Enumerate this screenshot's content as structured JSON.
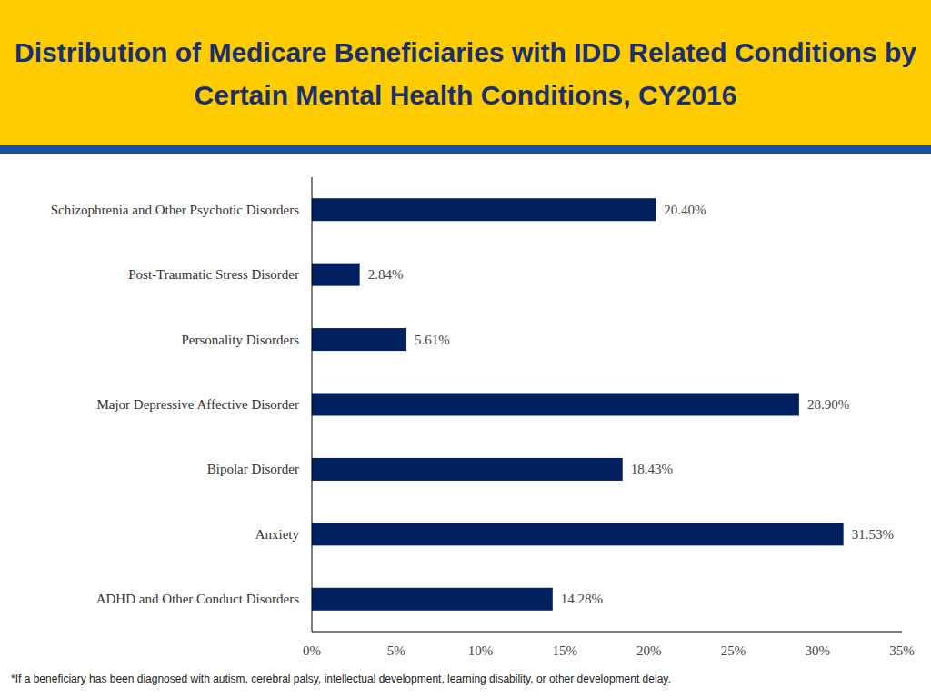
{
  "chart_data": {
    "type": "bar",
    "orientation": "horizontal",
    "title": "Distribution of Medicare Beneficiaries with IDD Related Conditions by Certain Mental Health Conditions, CY2016",
    "categories": [
      "Schizophrenia and Other Psychotic Disorders",
      "Post-Traumatic Stress Disorder",
      "Personality Disorders",
      "Major Depressive Affective Disorder",
      "Bipolar Disorder",
      "Anxiety",
      "ADHD and Other Conduct Disorders"
    ],
    "values": [
      20.4,
      2.84,
      5.61,
      28.9,
      18.43,
      31.53,
      14.28
    ],
    "value_labels": [
      "20.40%",
      "2.84%",
      "5.61%",
      "28.90%",
      "18.43%",
      "31.53%",
      "14.28%"
    ],
    "color": "#002060",
    "xlim": [
      0,
      35
    ],
    "xticks": [
      {
        "value": 0,
        "label": "0%"
      },
      {
        "value": 5,
        "label": "5%"
      },
      {
        "value": 10,
        "label": "10%"
      },
      {
        "value": 15,
        "label": "15%"
      },
      {
        "value": 20,
        "label": "20%"
      },
      {
        "value": 25,
        "label": "25%"
      },
      {
        "value": 30,
        "label": "30%"
      },
      {
        "value": 35,
        "label": "35%"
      }
    ],
    "grid": false,
    "data_labels": true,
    "annotations": [
      "*If a beneficiary has been diagnosed with autism, cerebral palsy, intellectual development, learning disability, or other development delay."
    ]
  }
}
